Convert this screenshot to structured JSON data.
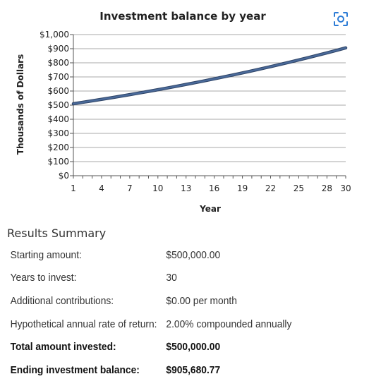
{
  "chart_data": {
    "type": "line",
    "title": "Investment balance by year",
    "xlabel": "Year",
    "ylabel": "Thousands of Dollars",
    "x_tick_labels": [
      "1",
      "4",
      "7",
      "10",
      "13",
      "16",
      "19",
      "22",
      "25",
      "28",
      "30"
    ],
    "y_tick_labels": [
      "$0",
      "$100",
      "$200",
      "$300",
      "$400",
      "$500",
      "$600",
      "$700",
      "$800",
      "$900",
      "$1,000"
    ],
    "xlim": [
      1,
      30
    ],
    "ylim": [
      0,
      1000
    ],
    "grid": "horizontal",
    "series": [
      {
        "color": "#4a6a9a",
        "x": [
          1,
          2,
          3,
          4,
          5,
          6,
          7,
          8,
          9,
          10,
          11,
          12,
          13,
          14,
          15,
          16,
          17,
          18,
          19,
          20,
          21,
          22,
          23,
          24,
          25,
          26,
          27,
          28,
          29,
          30
        ],
        "values": [
          510.0,
          520.2,
          530.6,
          541.2,
          552.0,
          563.1,
          574.3,
          585.8,
          597.5,
          609.5,
          621.7,
          634.1,
          646.8,
          659.7,
          672.9,
          686.4,
          700.1,
          714.1,
          728.4,
          743.0,
          757.8,
          773.0,
          788.5,
          804.2,
          820.3,
          836.7,
          853.5,
          870.5,
          887.9,
          905.7
        ]
      }
    ]
  },
  "focus_icon": "focus-scan-icon",
  "summary": {
    "heading": "Results Summary",
    "rows": [
      {
        "label": "Starting amount:",
        "value": "$500,000.00"
      },
      {
        "label": "Years to invest:",
        "value": "30"
      },
      {
        "label": "Additional contributions:",
        "value": "$0.00 per month"
      },
      {
        "label": "Hypothetical annual rate of return:",
        "value": "2.00% compounded annually"
      },
      {
        "label": "Total amount invested:",
        "value": "$500,000.00"
      },
      {
        "label": "Ending investment balance:",
        "value": "$905,680.77"
      }
    ]
  }
}
